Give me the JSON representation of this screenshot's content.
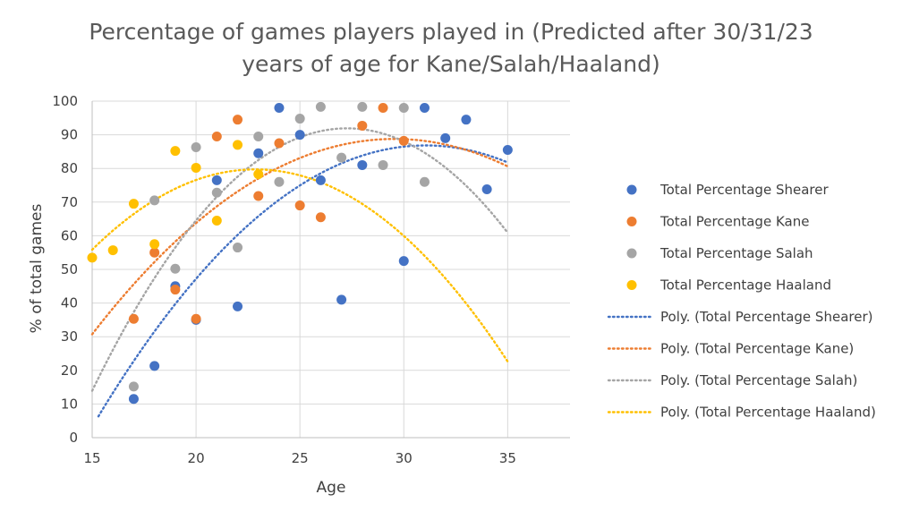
{
  "chart_data": {
    "type": "scatter",
    "title_lines": [
      "Percentage of games players played in (Predicted after 30/31/23",
      "years of age for Kane/Salah/Haaland)"
    ],
    "xlabel": "Age",
    "ylabel": "% of total games",
    "xlim": [
      15,
      38
    ],
    "ylim": [
      0,
      100
    ],
    "x_ticks": [
      15,
      20,
      25,
      30,
      35
    ],
    "y_ticks": [
      0,
      10,
      20,
      30,
      40,
      50,
      60,
      70,
      80,
      90,
      100
    ],
    "grid": true,
    "legend_position": "right",
    "series": [
      {
        "name": "Total Percentage Shearer",
        "color": "#4472C4",
        "points": [
          [
            17,
            11.5
          ],
          [
            18,
            21.3
          ],
          [
            19,
            45
          ],
          [
            20,
            35
          ],
          [
            21,
            76.5
          ],
          [
            22,
            39
          ],
          [
            23,
            84.5
          ],
          [
            24,
            98
          ],
          [
            25,
            90
          ],
          [
            26,
            76.5
          ],
          [
            27,
            41
          ],
          [
            28,
            81
          ],
          [
            30,
            52.5
          ],
          [
            31,
            98
          ],
          [
            32,
            89
          ],
          [
            33,
            94.5
          ],
          [
            34,
            73.8
          ],
          [
            35,
            85.5
          ]
        ]
      },
      {
        "name": "Total Percentage Kane",
        "color": "#ED7D31",
        "points": [
          [
            17,
            35.3
          ],
          [
            18,
            55
          ],
          [
            19,
            44
          ],
          [
            20,
            35.3
          ],
          [
            21,
            89.5
          ],
          [
            22,
            94.5
          ],
          [
            23,
            71.8
          ],
          [
            24,
            87.5
          ],
          [
            25,
            69
          ],
          [
            26,
            65.5
          ],
          [
            28,
            92.7
          ],
          [
            29,
            98
          ],
          [
            30,
            88.2
          ]
        ]
      },
      {
        "name": "Total Percentage Salah",
        "color": "#A5A5A5",
        "points": [
          [
            17,
            15.2
          ],
          [
            18,
            70.5
          ],
          [
            19,
            50.2
          ],
          [
            20,
            86.3
          ],
          [
            21,
            72.8
          ],
          [
            22,
            56.5
          ],
          [
            23,
            89.5
          ],
          [
            24,
            76
          ],
          [
            25,
            94.8
          ],
          [
            26,
            98.3
          ],
          [
            27,
            83.2
          ],
          [
            28,
            98.3
          ],
          [
            29,
            81
          ],
          [
            30,
            98
          ],
          [
            31,
            76
          ]
        ]
      },
      {
        "name": "Total Percentage Haaland",
        "color": "#FFC000",
        "points": [
          [
            15,
            53.5
          ],
          [
            16,
            55.7
          ],
          [
            17,
            69.5
          ],
          [
            18,
            57.5
          ],
          [
            19,
            85.2
          ],
          [
            20,
            80.2
          ],
          [
            21,
            64.5
          ],
          [
            22,
            87
          ],
          [
            23,
            78.3
          ]
        ]
      }
    ],
    "trendlines": [
      {
        "name": "Poly. (Total Percentage Shearer)",
        "color": "#4472C4",
        "type": "polynomial",
        "order": 2,
        "x_range": [
          15.3,
          35
        ],
        "coefficients": [
          -0.3244,
          20.1476,
          -225.99
        ]
      },
      {
        "name": "Poly. (Total Percentage Kane)",
        "color": "#ED7D31",
        "type": "polynomial",
        "order": 2,
        "x_range": [
          15,
          35
        ],
        "coefficients": [
          -0.2743,
          16.209,
          -150.69
        ]
      },
      {
        "name": "Poly. (Total Percentage Salah)",
        "color": "#A5A5A5",
        "type": "polynomial",
        "order": 2,
        "x_range": [
          15,
          35
        ],
        "coefficients": [
          -0.5185,
          28.2733,
          -293.51
        ]
      },
      {
        "name": "Poly. (Total Percentage Haaland)",
        "color": "#FFC000",
        "type": "polynomial",
        "order": 2,
        "x_range": [
          15,
          35
        ],
        "coefficients": [
          -0.3869,
          17.6833,
          -122.34
        ]
      }
    ]
  }
}
